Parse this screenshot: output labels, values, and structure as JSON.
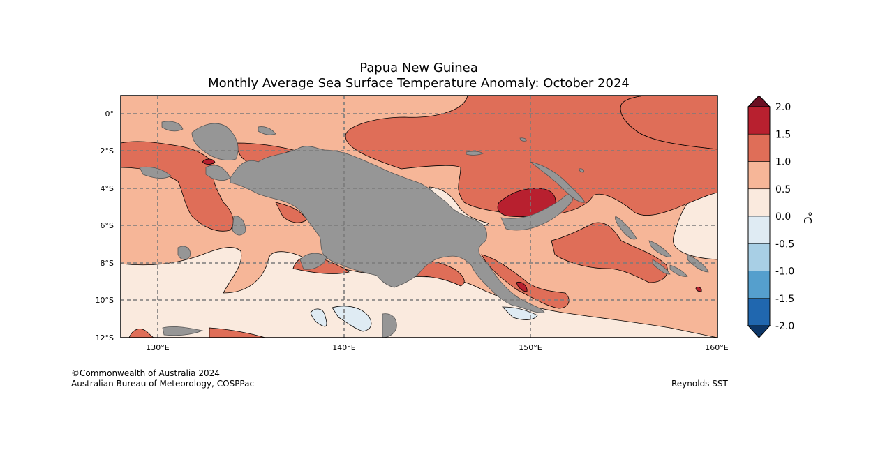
{
  "title": {
    "line1": "Papua New Guinea",
    "line2": "Monthly Average Sea Surface Temperature Anomaly: October 2024"
  },
  "axes": {
    "y_ticks": [
      "0°",
      "2°S",
      "4°S",
      "6°S",
      "8°S",
      "10°S",
      "12°S"
    ],
    "x_ticks": [
      "130°E",
      "140°E",
      "150°E",
      "160°E"
    ]
  },
  "colorbar": {
    "unit": "°C",
    "labels": [
      "2.0",
      "1.5",
      "1.0",
      "0.5",
      "0.0",
      "-0.5",
      "-1.0",
      "-1.5",
      "-2.0"
    ],
    "colors": [
      "#b8202f",
      "#df6e58",
      "#f6b698",
      "#faeade",
      "#dfebf3",
      "#a8cfe5",
      "#559fcd",
      "#2067af"
    ],
    "extend_high_color": "#6b0f22",
    "extend_low_color": "#0c3667"
  },
  "colors": {
    "land": "#969696",
    "coast": "#555555"
  },
  "credits": {
    "line1": "©Commonwealth of Australia 2024",
    "line2": "Australian Bureau of Meteorology, COSPPac",
    "source": "Reynolds SST"
  }
}
